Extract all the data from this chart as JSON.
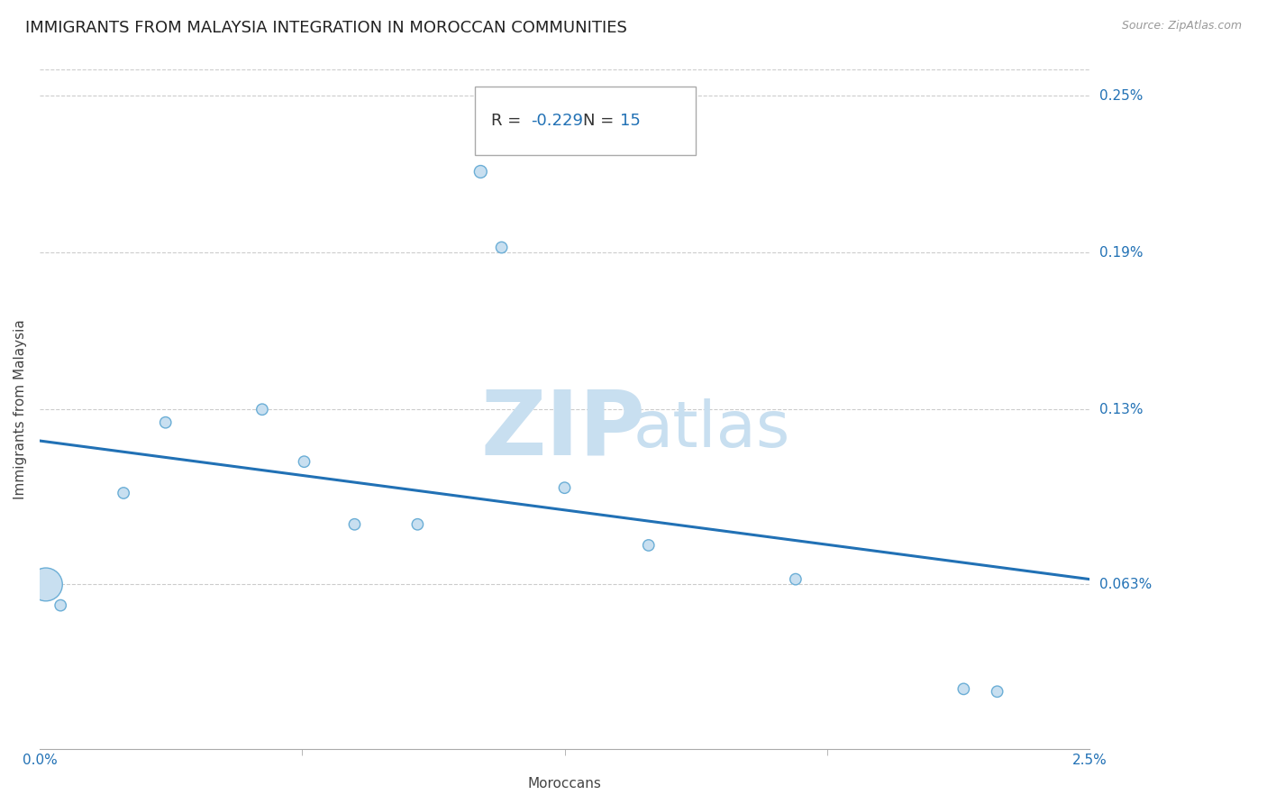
{
  "title": "IMMIGRANTS FROM MALAYSIA INTEGRATION IN MOROCCAN COMMUNITIES",
  "source": "Source: ZipAtlas.com",
  "xlabel": "Moroccans",
  "ylabel": "Immigrants from Malaysia",
  "R": -0.229,
  "N": 15,
  "xlim": [
    0.0,
    0.025
  ],
  "ylim": [
    0.0,
    0.0026
  ],
  "ytick_labels": [
    "0.063%",
    "0.13%",
    "0.19%",
    "0.25%"
  ],
  "ytick_values": [
    0.00063,
    0.0013,
    0.0019,
    0.0025
  ],
  "scatter_x": [
    0.00015,
    0.002,
    0.003,
    0.0053,
    0.0063,
    0.0075,
    0.009,
    0.0105,
    0.011,
    0.0125,
    0.0145,
    0.018,
    0.022,
    0.0228,
    0.0005
  ],
  "scatter_y": [
    0.00063,
    0.00098,
    0.00125,
    0.0013,
    0.0011,
    0.00086,
    0.00086,
    0.00221,
    0.00192,
    0.001,
    0.00078,
    0.00065,
    0.00023,
    0.00022,
    0.00055
  ],
  "scatter_sizes": [
    700,
    80,
    80,
    80,
    80,
    80,
    80,
    100,
    80,
    80,
    80,
    80,
    80,
    80,
    80
  ],
  "scatter_color": "#c8dff0",
  "scatter_edge_color": "#6baed6",
  "trend_color": "#2171b5",
  "trend_linewidth": 2.2,
  "trend_x_start": 0.0,
  "trend_x_end": 0.025,
  "trend_y_start": 0.00118,
  "trend_y_end": 0.00065,
  "watermark_zip": "ZIP",
  "watermark_atlas": "atlas",
  "watermark_color_zip": "#c8dff0",
  "watermark_color_atlas": "#c8dff0",
  "background_color": "#ffffff",
  "grid_color": "#cccccc",
  "title_fontsize": 13,
  "label_fontsize": 11,
  "tick_label_color": "#2171b5",
  "stat_box_edge_color": "#aaaaaa",
  "stat_R_label_color": "#333333",
  "stat_R_value_color": "#2171b5",
  "stat_N_label_color": "#333333",
  "stat_N_value_color": "#2171b5"
}
